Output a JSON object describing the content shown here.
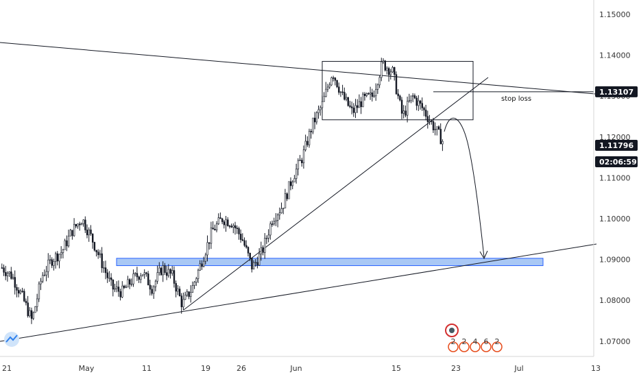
{
  "colors": {
    "background": "#ffffff",
    "candle": "#131722",
    "line": "#131722",
    "zone_fill": "#a9c8f5",
    "zone_stroke": "#2962ff",
    "price_tag_bg": "#131722",
    "price_tag_text": "#ffffff",
    "axis_text": "#333333",
    "axis_line": "#d6d6d6"
  },
  "chart_data": {
    "type": "candlestick",
    "title": "",
    "xlabel": "",
    "ylabel": "",
    "ylim": [
      1.065,
      1.154
    ],
    "y_ticks": [
      "1.15000",
      "1.14000",
      "1.13000",
      "1.12000",
      "1.11000",
      "1.10000",
      "1.09000",
      "1.08000",
      "1.07000"
    ],
    "y_tick_values": [
      1.15,
      1.14,
      1.13,
      1.12,
      1.11,
      1.1,
      1.09,
      1.08,
      1.07
    ],
    "x_ticks": [
      "21",
      "May",
      "11",
      "19",
      "26",
      "Jun",
      "15",
      "23",
      "Jul",
      "13"
    ],
    "x_tick_values": [
      "Apr 21",
      "May 1",
      "May 11",
      "May 19",
      "May 26",
      "Jun 1",
      "Jun 15",
      "Jun 23",
      "Jul 1",
      "Jul 13"
    ],
    "x_range": [
      "Apr 20",
      "Jul 13"
    ],
    "series": [
      {
        "close_path": [
          1.088,
          1.086,
          1.081,
          1.075,
          1.086,
          1.09,
          1.092,
          1.097,
          1.1,
          1.095,
          1.089,
          1.083,
          1.082,
          1.085,
          1.087,
          1.083,
          1.088,
          1.086,
          1.079,
          1.083,
          1.09,
          1.097,
          1.1,
          1.099,
          1.095,
          1.088,
          1.092,
          1.1,
          1.103,
          1.11,
          1.115,
          1.123,
          1.128,
          1.136,
          1.13,
          1.126,
          1.129,
          1.13,
          1.138,
          1.136,
          1.125,
          1.13,
          1.127,
          1.123,
          1.119
        ]
      }
    ],
    "current_price": "1.11796",
    "countdown": "02:06:59",
    "drawings": {
      "stop_loss_level": "1.13107",
      "stop_loss_label": "stop loss",
      "support_zone": [
        1.0885,
        1.0903
      ],
      "consolidation_box": {
        "from": "Jun 4",
        "to": "Jun 25",
        "price_top": 1.1385,
        "price_bottom": 1.1242
      },
      "projection_target": 1.0897
    }
  },
  "events": {
    "badges": [
      "2",
      "2",
      "4",
      "6",
      "2"
    ]
  }
}
